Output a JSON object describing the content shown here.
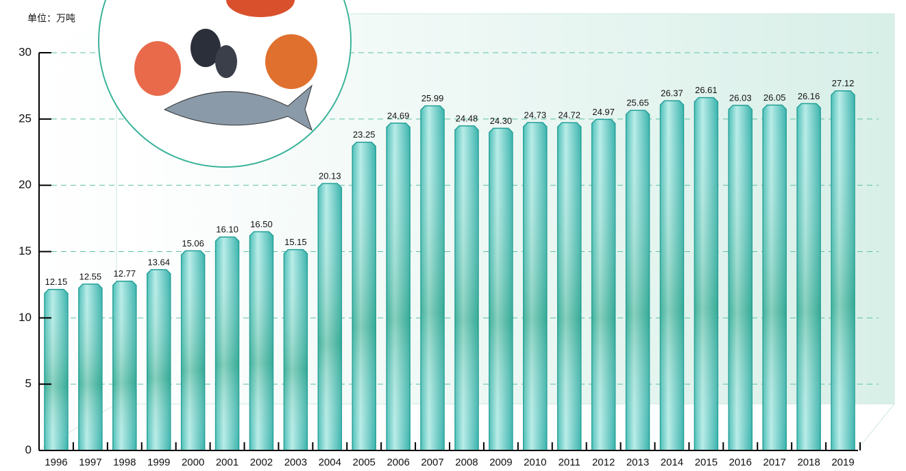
{
  "chart_data": {
    "type": "bar",
    "unit_label": "单位：万吨",
    "categories": [
      "1996",
      "1997",
      "1998",
      "1999",
      "2000",
      "2001",
      "2002",
      "2003",
      "2004",
      "2005",
      "2006",
      "2007",
      "2008",
      "2009",
      "2010",
      "2011",
      "2012",
      "2013",
      "2014",
      "2015",
      "2016",
      "2017",
      "2018",
      "2019"
    ],
    "values": [
      12.15,
      12.55,
      12.77,
      13.64,
      15.06,
      16.1,
      16.5,
      15.15,
      20.13,
      23.25,
      24.69,
      25.99,
      24.48,
      24.3,
      24.73,
      24.72,
      24.97,
      25.65,
      26.37,
      26.61,
      26.03,
      26.05,
      26.16,
      27.12
    ],
    "value_labels": [
      "12.15",
      "12.55",
      "12.77",
      "13.64",
      "15.06",
      "16.10",
      "16.50",
      "15.15",
      "20.13",
      "23.25",
      "24.69",
      "25.99",
      "24.48",
      "24.30",
      "24.73",
      "24.72",
      "24.97",
      "25.65",
      "26.37",
      "26.61",
      "26.03",
      "26.05",
      "26.16",
      "27.12"
    ],
    "color": "#5cc8c4",
    "ylim": [
      0,
      30
    ],
    "yticks": [
      0,
      5,
      10,
      15,
      20,
      25,
      30
    ],
    "grid": true
  }
}
